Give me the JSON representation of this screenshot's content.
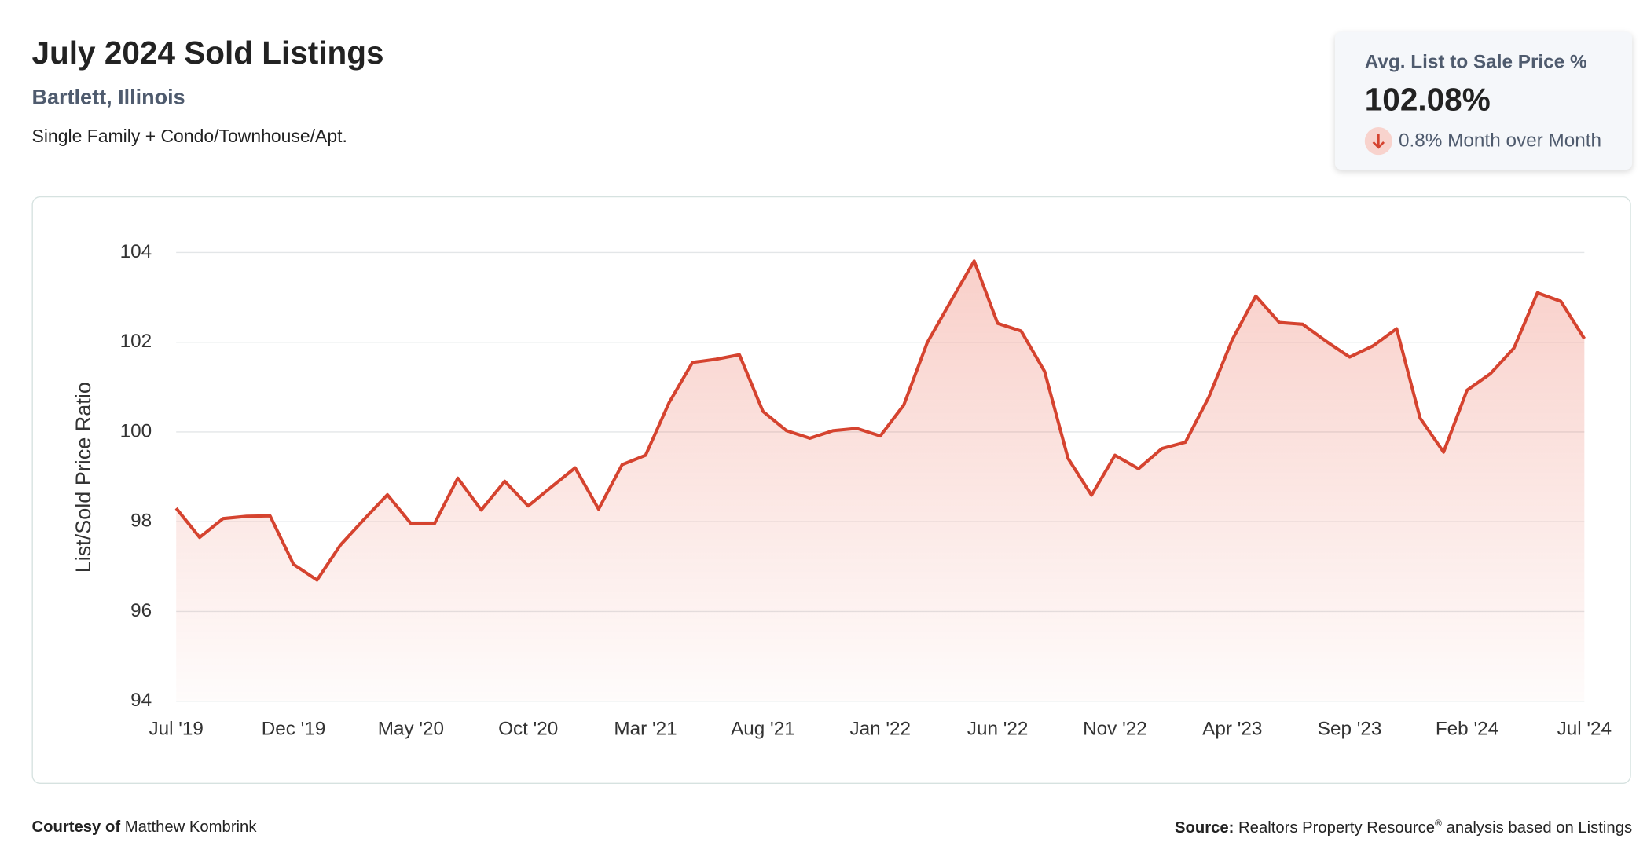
{
  "chart_data": {
    "type": "line",
    "title": "July 2024 Sold Listings",
    "subtitle": "Bartlett, Illinois",
    "description": "Single Family + Condo/Townhouse/Apt.",
    "y_label": "List/Sold Price Ratio",
    "categories": [
      "Jul '19",
      null,
      null,
      null,
      null,
      "Dec '19",
      null,
      null,
      null,
      null,
      "May '20",
      null,
      null,
      null,
      null,
      "Oct '20",
      null,
      null,
      null,
      null,
      "Mar '21",
      null,
      null,
      null,
      null,
      "Aug '21",
      null,
      null,
      null,
      null,
      "Jan '22",
      null,
      null,
      null,
      null,
      "Jun '22",
      null,
      null,
      null,
      null,
      "Nov '22",
      null,
      null,
      null,
      null,
      "Apr '23",
      null,
      null,
      null,
      null,
      "Sep '23",
      null,
      null,
      null,
      null,
      "Feb '24",
      null,
      null,
      null,
      null,
      "Jul '24"
    ],
    "values": [
      98.3,
      97.65,
      98.07,
      98.12,
      98.13,
      97.05,
      96.7,
      97.48,
      98.05,
      98.6,
      97.96,
      97.95,
      98.97,
      98.26,
      98.9,
      98.35,
      98.78,
      99.2,
      98.28,
      99.27,
      99.48,
      100.65,
      101.55,
      101.62,
      101.72,
      100.46,
      100.03,
      99.86,
      100.03,
      100.08,
      99.91,
      100.6,
      101.99,
      102.91,
      103.81,
      102.42,
      102.25,
      101.35,
      99.41,
      98.59,
      99.48,
      99.18,
      99.63,
      99.77,
      100.78,
      102.06,
      103.03,
      102.44,
      102.4,
      102.02,
      101.67,
      101.92,
      102.3,
      100.31,
      99.55,
      100.93,
      101.3,
      101.87,
      103.1,
      102.91,
      102.08
    ],
    "color": "#d5432f",
    "ylim": [
      94,
      104
    ],
    "yticks": [
      94,
      96,
      98,
      100,
      102,
      104
    ],
    "grid": true
  },
  "kpi": {
    "label": "Avg. List to Sale Price %",
    "value": "102.08%",
    "change": "0.8% Month over Month"
  },
  "footer": {
    "courtesy_label": "Courtesy of",
    "courtesy_name": "Matthew Kombrink",
    "source_label": "Source:",
    "source_name": "Realtors Property Resource",
    "source_mark": "®",
    "source_rest": "analysis based on Listings"
  }
}
